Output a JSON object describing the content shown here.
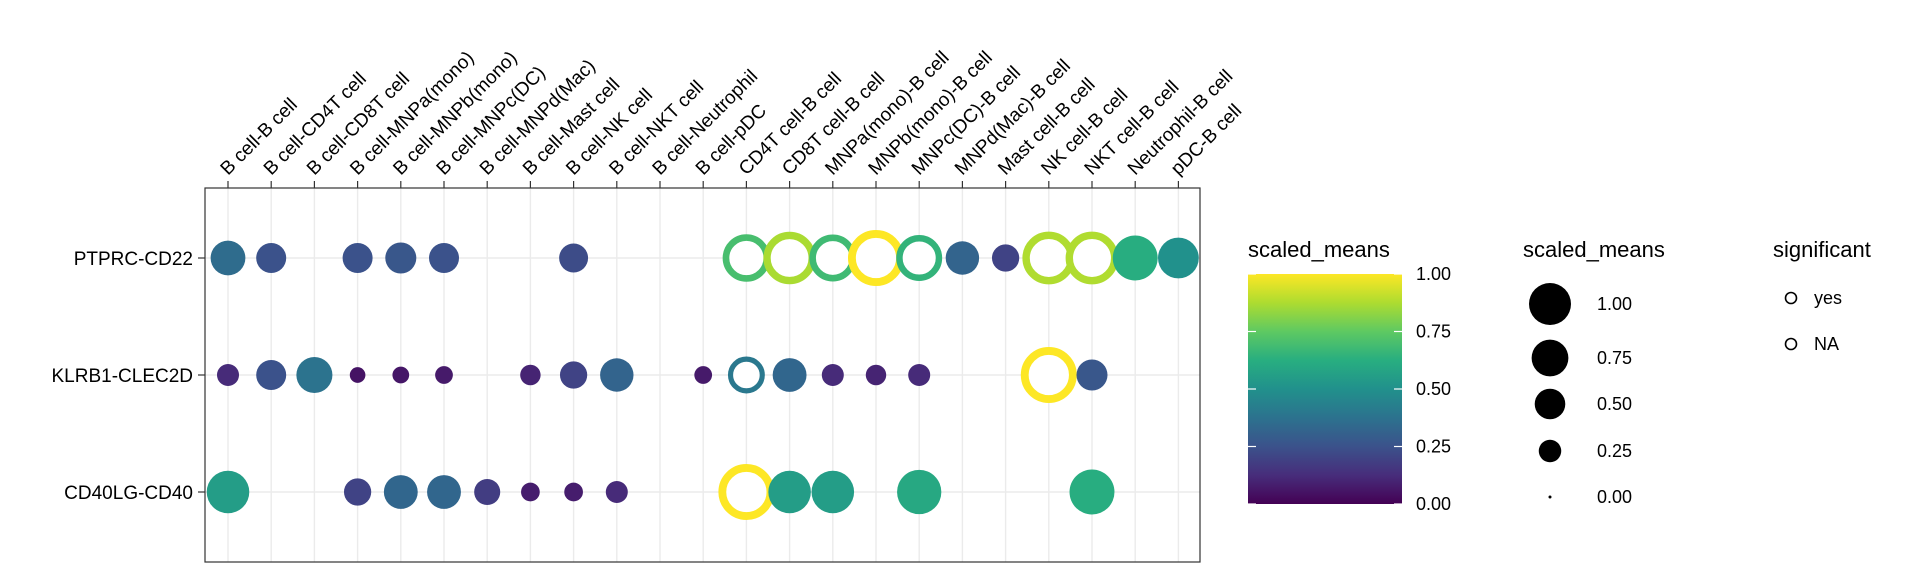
{
  "chart_data": {
    "type": "scatter",
    "plot_kind": "dot plot (cell-cell interaction)",
    "categories": [
      "B cell-B cell",
      "B cell-CD4T cell",
      "B cell-CD8T cell",
      "B cell-MNPa(mono)",
      "B cell-MNPb(mono)",
      "B cell-MNPc(DC)",
      "B cell-MNPd(Mac)",
      "B cell-Mast cell",
      "B cell-NK cell",
      "B cell-NKT cell",
      "B cell-Neutrophil",
      "B cell-pDC",
      "CD4T cell-B cell",
      "CD8T cell-B cell",
      "MNPa(mono)-B cell",
      "MNPb(mono)-B cell",
      "MNPc(DC)-B cell",
      "MNPd(Mac)-B cell",
      "Mast cell-B cell",
      "NK cell-B cell",
      "NKT cell-B cell",
      "Neutrophil-B cell",
      "pDC-B cell"
    ],
    "rows": [
      "PTPRC-CD22",
      "KLRB1-CLEC2D",
      "CD40LG-CD40"
    ],
    "grid": true,
    "color_scale": "viridis",
    "colorbar": {
      "title": "scaled_means",
      "ticks": [
        "1.00",
        "0.75",
        "0.50",
        "0.25",
        "0.00"
      ],
      "range": [
        0,
        1
      ]
    },
    "size_legend": {
      "title": "scaled_means",
      "labels": [
        "1.00",
        "0.75",
        "0.50",
        "0.25",
        "0.00"
      ],
      "values": [
        1.0,
        0.75,
        0.5,
        0.25,
        0.0
      ]
    },
    "significant_legend": {
      "title": "significant",
      "labels": [
        "yes",
        "NA"
      ]
    },
    "points": [
      {
        "row": 0,
        "col": 0,
        "v": 0.35,
        "sig": false
      },
      {
        "row": 0,
        "col": 1,
        "v": 0.25,
        "sig": false
      },
      {
        "row": 0,
        "col": 3,
        "v": 0.25,
        "sig": false
      },
      {
        "row": 0,
        "col": 4,
        "v": 0.27,
        "sig": false
      },
      {
        "row": 0,
        "col": 5,
        "v": 0.25,
        "sig": false
      },
      {
        "row": 0,
        "col": 8,
        "v": 0.23,
        "sig": false
      },
      {
        "row": 0,
        "col": 12,
        "v": 0.7,
        "sig": true
      },
      {
        "row": 0,
        "col": 13,
        "v": 0.87,
        "sig": true
      },
      {
        "row": 0,
        "col": 14,
        "v": 0.68,
        "sig": true
      },
      {
        "row": 0,
        "col": 15,
        "v": 1.0,
        "sig": true
      },
      {
        "row": 0,
        "col": 16,
        "v": 0.65,
        "sig": true
      },
      {
        "row": 0,
        "col": 17,
        "v": 0.32,
        "sig": false
      },
      {
        "row": 0,
        "col": 18,
        "v": 0.2,
        "sig": false
      },
      {
        "row": 0,
        "col": 19,
        "v": 0.88,
        "sig": true
      },
      {
        "row": 0,
        "col": 20,
        "v": 0.88,
        "sig": true
      },
      {
        "row": 0,
        "col": 21,
        "v": 0.62,
        "sig": false
      },
      {
        "row": 0,
        "col": 22,
        "v": 0.5,
        "sig": false
      },
      {
        "row": 1,
        "col": 0,
        "v": 0.12,
        "sig": false
      },
      {
        "row": 1,
        "col": 1,
        "v": 0.25,
        "sig": false
      },
      {
        "row": 1,
        "col": 2,
        "v": 0.38,
        "sig": false
      },
      {
        "row": 1,
        "col": 3,
        "v": 0.05,
        "sig": false
      },
      {
        "row": 1,
        "col": 4,
        "v": 0.06,
        "sig": false
      },
      {
        "row": 1,
        "col": 5,
        "v": 0.07,
        "sig": false
      },
      {
        "row": 1,
        "col": 7,
        "v": 0.1,
        "sig": false
      },
      {
        "row": 1,
        "col": 8,
        "v": 0.2,
        "sig": false
      },
      {
        "row": 1,
        "col": 9,
        "v": 0.32,
        "sig": false
      },
      {
        "row": 1,
        "col": 11,
        "v": 0.07,
        "sig": false
      },
      {
        "row": 1,
        "col": 12,
        "v": 0.4,
        "sig": true
      },
      {
        "row": 1,
        "col": 13,
        "v": 0.33,
        "sig": false
      },
      {
        "row": 1,
        "col": 14,
        "v": 0.12,
        "sig": false
      },
      {
        "row": 1,
        "col": 15,
        "v": 0.1,
        "sig": false
      },
      {
        "row": 1,
        "col": 16,
        "v": 0.12,
        "sig": false
      },
      {
        "row": 1,
        "col": 19,
        "v": 1.0,
        "sig": true
      },
      {
        "row": 1,
        "col": 20,
        "v": 0.27,
        "sig": false
      },
      {
        "row": 2,
        "col": 0,
        "v": 0.55,
        "sig": false
      },
      {
        "row": 2,
        "col": 3,
        "v": 0.2,
        "sig": false
      },
      {
        "row": 2,
        "col": 4,
        "v": 0.33,
        "sig": false
      },
      {
        "row": 2,
        "col": 5,
        "v": 0.33,
        "sig": false
      },
      {
        "row": 2,
        "col": 6,
        "v": 0.18,
        "sig": false
      },
      {
        "row": 2,
        "col": 7,
        "v": 0.08,
        "sig": false
      },
      {
        "row": 2,
        "col": 8,
        "v": 0.08,
        "sig": false
      },
      {
        "row": 2,
        "col": 9,
        "v": 0.12,
        "sig": false
      },
      {
        "row": 2,
        "col": 12,
        "v": 1.0,
        "sig": true
      },
      {
        "row": 2,
        "col": 13,
        "v": 0.55,
        "sig": false
      },
      {
        "row": 2,
        "col": 14,
        "v": 0.55,
        "sig": false
      },
      {
        "row": 2,
        "col": 16,
        "v": 0.6,
        "sig": false
      },
      {
        "row": 2,
        "col": 20,
        "v": 0.62,
        "sig": false
      }
    ]
  }
}
